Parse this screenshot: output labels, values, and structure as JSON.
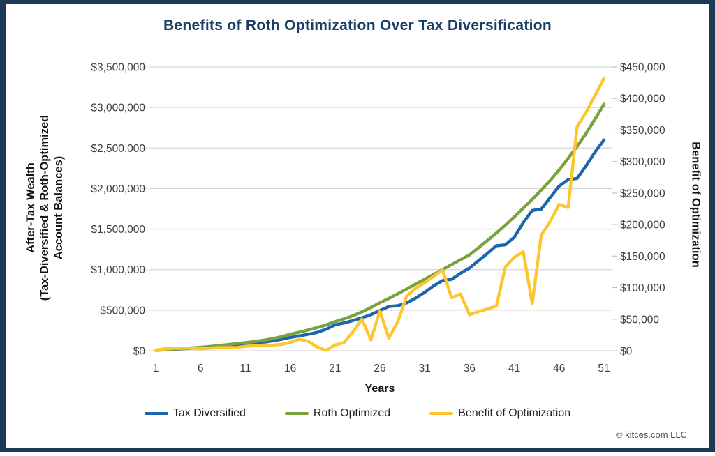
{
  "title": "Benefits of Roth Optimization Over Tax Diversification",
  "footer": {
    "copyright": "© kitces.com LLC"
  },
  "colors": {
    "frame_navy": "#1c3a57",
    "title_navy": "#1b3c64",
    "blue": "#1a67ad",
    "green": "#78a33c",
    "yellow": "#fec62e",
    "gridline": "#d6d6d6",
    "tick_mark": "#c3c3c3",
    "tick_text": "#3d3d3d"
  },
  "chart_data": {
    "type": "line",
    "title": "Benefits of Roth Optimization Over Tax Diversification",
    "xlabel": "Years",
    "ylabel_left_lines": [
      "After-Tax Wealth",
      "(Tax-Diversified & Roth-Optimized",
      "Account Balances)"
    ],
    "ylabel_right": "Benefit of Optimization",
    "grid": "horizontal",
    "legend_position": "bottom",
    "x_ticks": [
      1,
      6,
      11,
      16,
      21,
      26,
      31,
      36,
      41,
      46,
      51
    ],
    "left_axis": {
      "min": 0,
      "max": 3500000,
      "step": 500000,
      "tick_labels": [
        "$0",
        "$500,000",
        "$1,000,000",
        "$1,500,000",
        "$2,000,000",
        "$2,500,000",
        "$3,000,000",
        "$3,500,000"
      ]
    },
    "right_axis": {
      "min": 0,
      "max": 450000,
      "step": 50000,
      "tick_labels": [
        "$0",
        "$50,000",
        "$100,000",
        "$150,000",
        "$200,000",
        "$250,000",
        "$300,000",
        "$350,000",
        "$400,000",
        "$450,000"
      ]
    },
    "x": [
      1,
      2,
      3,
      4,
      5,
      6,
      7,
      8,
      9,
      10,
      11,
      12,
      13,
      14,
      15,
      16,
      17,
      18,
      19,
      20,
      21,
      22,
      23,
      24,
      25,
      26,
      27,
      28,
      29,
      30,
      31,
      32,
      33,
      34,
      35,
      36,
      37,
      38,
      39,
      40,
      41,
      42,
      43,
      44,
      45,
      46,
      47,
      48,
      49,
      50,
      51
    ],
    "series": [
      {
        "name": "Tax Diversified",
        "axis": "left",
        "color": "#1a67ad",
        "values": [
          5000,
          12000,
          18000,
          24000,
          30000,
          36000,
          44000,
          53000,
          62000,
          70000,
          85000,
          95000,
          105000,
          120000,
          140000,
          163000,
          182000,
          202000,
          225000,
          265000,
          318000,
          342000,
          372000,
          405000,
          445000,
          495000,
          545000,
          555000,
          590000,
          650000,
          720000,
          800000,
          865000,
          880000,
          955000,
          1020000,
          1110000,
          1200000,
          1295000,
          1305000,
          1400000,
          1580000,
          1730000,
          1745000,
          1890000,
          2030000,
          2110000,
          2125000,
          2280000,
          2450000,
          2600000
        ]
      },
      {
        "name": "Roth Optimized",
        "axis": "left",
        "color": "#78a33c",
        "values": [
          5000,
          13000,
          20000,
          27000,
          34000,
          42000,
          52000,
          63000,
          75000,
          88000,
          100000,
          113000,
          128000,
          148000,
          172000,
          203000,
          228000,
          255000,
          285000,
          318000,
          358000,
          393000,
          432000,
          478000,
          532000,
          592000,
          645000,
          703000,
          762000,
          822000,
          882000,
          942000,
          1002000,
          1062000,
          1122000,
          1182000,
          1270000,
          1360000,
          1452000,
          1550000,
          1652000,
          1758000,
          1868000,
          1982000,
          2100000,
          2230000,
          2372000,
          2520000,
          2680000,
          2858000,
          3040000
        ]
      },
      {
        "name": "Benefit of Optimization",
        "axis": "right",
        "color": "#fec62e",
        "values": [
          1000,
          3000,
          4000,
          4000,
          4000,
          3000,
          4000,
          5000,
          5000,
          5000,
          7000,
          8000,
          9000,
          9000,
          10000,
          13000,
          18000,
          15000,
          6000,
          500,
          9000,
          13000,
          30000,
          50000,
          17000,
          63000,
          20000,
          46000,
          87000,
          99000,
          108000,
          118000,
          128000,
          84000,
          90000,
          57000,
          62000,
          66000,
          71000,
          133000,
          148000,
          157000,
          75000,
          183000,
          205000,
          232000,
          227000,
          355000,
          378000,
          405000,
          432000
        ]
      }
    ]
  }
}
